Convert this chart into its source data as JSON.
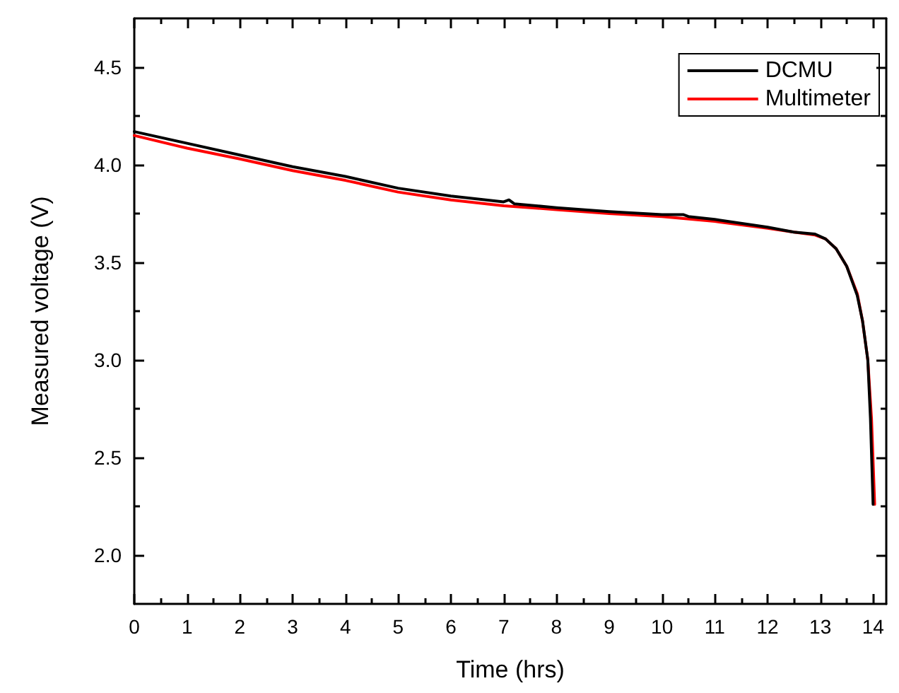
{
  "chart_data": {
    "type": "line",
    "xlabel": "Time (hrs)",
    "ylabel": "Measured voltage (V)",
    "xlim": [
      0,
      14.25
    ],
    "ylim": [
      1.75,
      4.75
    ],
    "xticks": [
      0,
      {
        "value": 0.5,
        "label": null
      },
      1,
      {
        "value": 1.5,
        "label": null
      },
      2,
      {
        "value": 2.5,
        "label": null
      },
      3,
      {
        "value": 3.5,
        "label": null
      },
      4,
      {
        "value": 4.5,
        "label": null
      },
      5,
      {
        "value": 5.5,
        "label": null
      },
      6,
      {
        "value": 6.5,
        "label": null
      },
      7,
      {
        "value": 7.5,
        "label": null
      },
      8,
      {
        "value": 8.5,
        "label": null
      },
      9,
      {
        "value": 9.5,
        "label": null
      },
      10,
      {
        "value": 10.5,
        "label": null
      },
      11,
      {
        "value": 11.5,
        "label": null
      },
      12,
      {
        "value": 12.5,
        "label": null
      },
      13,
      {
        "value": 13.5,
        "label": null
      },
      14
    ],
    "yticks": [
      {
        "value": 2,
        "label": "2.0"
      },
      {
        "value": 2.25,
        "label": null
      },
      2.5,
      {
        "value": 2.75,
        "label": null
      },
      {
        "value": 3,
        "label": "3.0"
      },
      {
        "value": 3.25,
        "label": null
      },
      3.5,
      {
        "value": 3.75,
        "label": null
      },
      {
        "value": 4,
        "label": "4.0"
      },
      {
        "value": 4.25,
        "label": null
      },
      4.5
    ],
    "grid": false,
    "legend": "top right",
    "marker": "none",
    "line_style": "solid",
    "series": [
      {
        "name": "DCMU",
        "color": "#000000",
        "x": [
          0,
          1,
          2,
          3,
          4,
          5,
          6,
          7,
          7.1,
          7.2,
          8,
          9,
          10,
          10.4,
          10.5,
          11,
          12,
          12.5,
          12.9,
          13.1,
          13.3,
          13.5,
          13.7,
          13.8,
          13.9,
          13.95,
          14.0
        ],
        "values": [
          4.17,
          4.11,
          4.05,
          3.99,
          3.94,
          3.88,
          3.84,
          3.81,
          3.82,
          3.8,
          3.78,
          3.76,
          3.745,
          3.745,
          3.735,
          3.72,
          3.68,
          3.655,
          3.645,
          3.62,
          3.57,
          3.48,
          3.33,
          3.2,
          3.0,
          2.7,
          2.26
        ]
      },
      {
        "name": "Multimeter",
        "color": "#ff0000",
        "x": [
          0,
          1,
          2,
          3,
          4,
          5,
          6,
          7,
          8,
          9,
          10,
          11,
          12,
          12.5,
          12.9,
          13.1,
          13.3,
          13.5,
          13.7,
          13.8,
          13.9,
          13.97,
          14.03
        ],
        "values": [
          4.15,
          4.085,
          4.03,
          3.97,
          3.92,
          3.86,
          3.82,
          3.79,
          3.77,
          3.75,
          3.735,
          3.71,
          3.675,
          3.655,
          3.64,
          3.62,
          3.57,
          3.48,
          3.34,
          3.2,
          3.0,
          2.7,
          2.26
        ]
      }
    ]
  }
}
